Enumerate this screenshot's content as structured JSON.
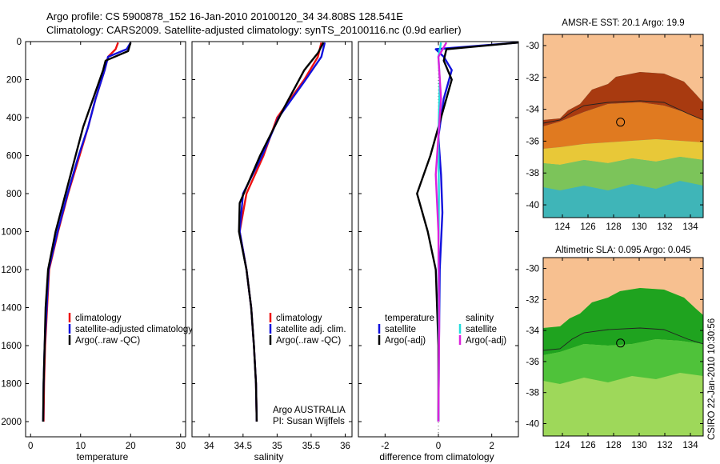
{
  "title": {
    "line1": "Argo profile: CS 5900878_152 16-Jan-2010 20100120_34 34.808S 128.541E",
    "line2": "Climatology: CARS2009. Satellite-adjusted climatology: synTS_20100116.nc (0.9d earlier)"
  },
  "credit": "CSIRO 22-Jan-2010 10:30:56",
  "chart_data": [
    {
      "id": "temperature",
      "type": "line",
      "xlabel": "temperature",
      "xlim": [
        -1,
        31
      ],
      "xticks": [
        0,
        10,
        20,
        30
      ],
      "ylim": [
        2080,
        0
      ],
      "yticks": [
        0,
        200,
        400,
        600,
        800,
        1000,
        1200,
        1400,
        1600,
        1800,
        2000
      ],
      "series": [
        {
          "name": "climatology",
          "color": "#ee1111",
          "points": [
            [
              17.5,
              5
            ],
            [
              17,
              40
            ],
            [
              15.5,
              80
            ],
            [
              14.8,
              150
            ],
            [
              13,
              300
            ],
            [
              11.5,
              450
            ],
            [
              9.8,
              600
            ],
            [
              7.5,
              800
            ],
            [
              5.5,
              1000
            ],
            [
              3.7,
              1200
            ],
            [
              3.3,
              1400
            ],
            [
              2.9,
              1600
            ],
            [
              2.7,
              1800
            ],
            [
              2.6,
              2000
            ]
          ]
        },
        {
          "name": "satellite-adjusted climatology",
          "color": "#1111dd",
          "points": [
            [
              20,
              5
            ],
            [
              19.2,
              40
            ],
            [
              15.5,
              80
            ],
            [
              14.8,
              150
            ],
            [
              13,
              300
            ],
            [
              11.5,
              450
            ],
            [
              9.6,
              600
            ],
            [
              7.4,
              800
            ],
            [
              5.4,
              1000
            ],
            [
              3.6,
              1200
            ],
            [
              3.2,
              1400
            ],
            [
              2.8,
              1600
            ],
            [
              2.6,
              1800
            ],
            [
              2.5,
              2000
            ]
          ]
        },
        {
          "name": "Argo(..raw -QC)",
          "color": "#000000",
          "points": [
            [
              20,
              5
            ],
            [
              19.5,
              50
            ],
            [
              15,
              100
            ],
            [
              14.5,
              150
            ],
            [
              12.5,
              300
            ],
            [
              10.5,
              450
            ],
            [
              9,
              600
            ],
            [
              7,
              800
            ],
            [
              5,
              1000
            ],
            [
              3.5,
              1200
            ],
            [
              3,
              1400
            ],
            [
              2.8,
              1600
            ],
            [
              2.6,
              1800
            ],
            [
              2.5,
              2000
            ]
          ]
        }
      ],
      "legend": [
        "climatology",
        "satellite-adjusted climatology",
        "Argo(..raw -QC)"
      ]
    },
    {
      "id": "salinity",
      "type": "line",
      "xlabel": "salinity",
      "xlim": [
        33.75,
        36.1
      ],
      "xticks": [
        34,
        34.5,
        35,
        35.5,
        36
      ],
      "xticklabels": [
        "34",
        "34.5",
        "35",
        "35.5",
        "36"
      ],
      "ylim": [
        2080,
        0
      ],
      "series": [
        {
          "name": "climatology",
          "color": "#ee1111",
          "points": [
            [
              35.65,
              5
            ],
            [
              35.6,
              80
            ],
            [
              35.4,
              200
            ],
            [
              35.0,
              400
            ],
            [
              34.8,
              600
            ],
            [
              34.55,
              800
            ],
            [
              34.45,
              1000
            ],
            [
              34.55,
              1200
            ],
            [
              34.62,
              1400
            ],
            [
              34.66,
              1600
            ],
            [
              34.69,
              1800
            ],
            [
              34.7,
              2000
            ]
          ]
        },
        {
          "name": "satellite adj. clim.",
          "color": "#1111dd",
          "points": [
            [
              35.7,
              5
            ],
            [
              35.65,
              80
            ],
            [
              35.42,
              200
            ],
            [
              35.02,
              400
            ],
            [
              34.78,
              600
            ],
            [
              34.5,
              800
            ],
            [
              34.45,
              1000
            ],
            [
              34.55,
              1200
            ],
            [
              34.62,
              1400
            ],
            [
              34.66,
              1600
            ],
            [
              34.69,
              1800
            ],
            [
              34.7,
              2000
            ]
          ]
        },
        {
          "name": "Argo(..raw -QC)",
          "color": "#000000",
          "points": [
            [
              35.68,
              5
            ],
            [
              35.6,
              60
            ],
            [
              35.4,
              150
            ],
            [
              35.1,
              350
            ],
            [
              34.75,
              600
            ],
            [
              34.45,
              850
            ],
            [
              34.44,
              1000
            ],
            [
              34.55,
              1200
            ],
            [
              34.62,
              1400
            ],
            [
              34.66,
              1600
            ],
            [
              34.69,
              1800
            ],
            [
              34.7,
              2000
            ]
          ]
        }
      ],
      "legend": [
        "climatology",
        "satellite adj. clim.",
        "Argo(..raw -QC)"
      ],
      "annotation": [
        "Argo AUSTRALIA",
        "PI: Susan Wijffels"
      ]
    },
    {
      "id": "difference",
      "type": "line",
      "xlabel": "difference from climatology",
      "xlim": [
        -3,
        3
      ],
      "xticks": [
        -2,
        0,
        2
      ],
      "ylim": [
        2080,
        0
      ],
      "series": [
        {
          "name": "temperature satellite",
          "color": "#1111dd",
          "points": [
            [
              3,
              5
            ],
            [
              -0.1,
              40
            ],
            [
              0.2,
              80
            ],
            [
              0.5,
              150
            ],
            [
              0.2,
              300
            ],
            [
              0,
              500
            ],
            [
              0.1,
              700
            ],
            [
              0.15,
              900
            ],
            [
              0.05,
              1200
            ],
            [
              0.02,
              1600
            ],
            [
              0,
              2000
            ]
          ]
        },
        {
          "name": "temperature Argo(-adj)",
          "color": "#000000",
          "points": [
            [
              3,
              5
            ],
            [
              0.3,
              40
            ],
            [
              0.2,
              100
            ],
            [
              0.5,
              200
            ],
            [
              0.1,
              400
            ],
            [
              -0.3,
              600
            ],
            [
              -0.8,
              800
            ],
            [
              -0.4,
              1000
            ],
            [
              -0.1,
              1200
            ],
            [
              0,
              1600
            ],
            [
              0,
              2000
            ]
          ]
        },
        {
          "name": "salinity satellite",
          "color": "#22dddd",
          "points": [
            [
              0.1,
              5
            ],
            [
              0,
              80
            ],
            [
              0.05,
              200
            ],
            [
              0,
              500
            ],
            [
              0.02,
              800
            ],
            [
              0,
              1200
            ],
            [
              0.02,
              1600
            ],
            [
              0,
              2000
            ]
          ]
        },
        {
          "name": "salinity Argo(-adj)",
          "color": "#dd22dd",
          "points": [
            [
              0.3,
              5
            ],
            [
              0,
              80
            ],
            [
              0.1,
              300
            ],
            [
              -0.1,
              700
            ],
            [
              0,
              1000
            ],
            [
              0.03,
              1500
            ],
            [
              0,
              2000
            ]
          ]
        }
      ],
      "legend_headers": [
        "temperature",
        "salinity"
      ],
      "legend": [
        "satellite",
        "Argo(-adj)",
        "satellite",
        "Argo(-adj)"
      ]
    },
    {
      "id": "sst_map",
      "type": "heatmap",
      "title": "AMSR-E SST: 20.1 Argo: 19.9",
      "xlim": [
        122.5,
        135
      ],
      "xticks": [
        124,
        126,
        128,
        130,
        132,
        134
      ],
      "ylim": [
        -40.8,
        -29.3
      ],
      "yticks": [
        -30,
        -32,
        -34,
        -36,
        -38,
        -40
      ],
      "float_lon": 128.541,
      "float_lat": -34.808
    },
    {
      "id": "sla_map",
      "type": "heatmap",
      "title": "Altimetric SLA: 0.095 Argo: 0.045",
      "xlim": [
        122.5,
        135
      ],
      "xticks": [
        124,
        126,
        128,
        130,
        132,
        134
      ],
      "ylim": [
        -40.8,
        -29.3
      ],
      "yticks": [
        -30,
        -32,
        -34,
        -36,
        -38,
        -40
      ],
      "float_lon": 128.541,
      "float_lat": -34.808
    }
  ]
}
